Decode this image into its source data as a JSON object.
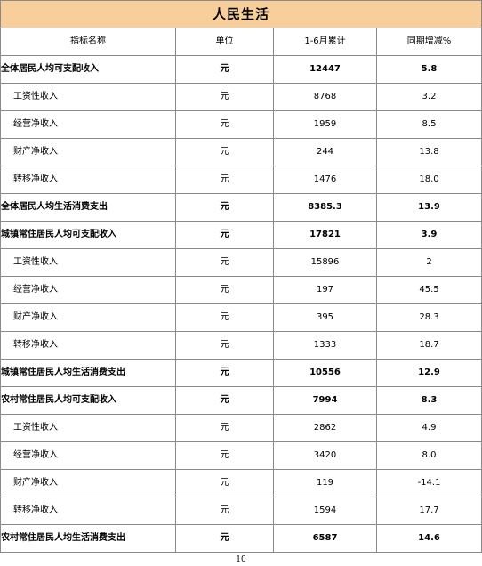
{
  "title": "人民生活",
  "headers": {
    "name": "指标名称",
    "unit": "单位",
    "value": "1-6月累计",
    "growth": "同期增减%"
  },
  "rows": [
    {
      "name": "全体居民人均可支配收入",
      "unit": "元",
      "value": "12447",
      "growth": "5.8",
      "bold": true
    },
    {
      "name": "工资性收入",
      "unit": "元",
      "value": "8768",
      "growth": "3.2",
      "bold": false
    },
    {
      "name": "经营净收入",
      "unit": "元",
      "value": "1959",
      "growth": "8.5",
      "bold": false
    },
    {
      "name": "财产净收入",
      "unit": "元",
      "value": "244",
      "growth": "13.8",
      "bold": false
    },
    {
      "name": "转移净收入",
      "unit": "元",
      "value": "1476",
      "growth": "18.0",
      "bold": false
    },
    {
      "name": "全体居民人均生活消费支出",
      "unit": "元",
      "value": "8385.3",
      "growth": "13.9",
      "bold": true
    },
    {
      "name": "城镇常住居民人均可支配收入",
      "unit": "元",
      "value": "17821",
      "growth": "3.9",
      "bold": true
    },
    {
      "name": "工资性收入",
      "unit": "元",
      "value": "15896",
      "growth": "2",
      "bold": false
    },
    {
      "name": "经营净收入",
      "unit": "元",
      "value": "197",
      "growth": "45.5",
      "bold": false
    },
    {
      "name": "财产净收入",
      "unit": "元",
      "value": "395",
      "growth": "28.3",
      "bold": false
    },
    {
      "name": "转移净收入",
      "unit": "元",
      "value": "1333",
      "growth": "18.7",
      "bold": false
    },
    {
      "name": "城镇常住居民人均生活消费支出",
      "unit": "元",
      "value": "10556",
      "growth": "12.9",
      "bold": true
    },
    {
      "name": "农村常住居民人均可支配收入",
      "unit": "元",
      "value": "7994",
      "growth": "8.3",
      "bold": true
    },
    {
      "name": "工资性收入",
      "unit": "元",
      "value": "2862",
      "growth": "4.9",
      "bold": false
    },
    {
      "name": "经营净收入",
      "unit": "元",
      "value": "3420",
      "growth": "8.0",
      "bold": false
    },
    {
      "name": "财产净收入",
      "unit": "元",
      "value": "119",
      "growth": "-14.1",
      "bold": false
    },
    {
      "name": "转移净收入",
      "unit": "元",
      "value": "1594",
      "growth": "17.7",
      "bold": false
    },
    {
      "name": "农村常住居民人均生活消费支出",
      "unit": "元",
      "value": "6587",
      "growth": "14.6",
      "bold": true
    }
  ],
  "page_number": "10"
}
